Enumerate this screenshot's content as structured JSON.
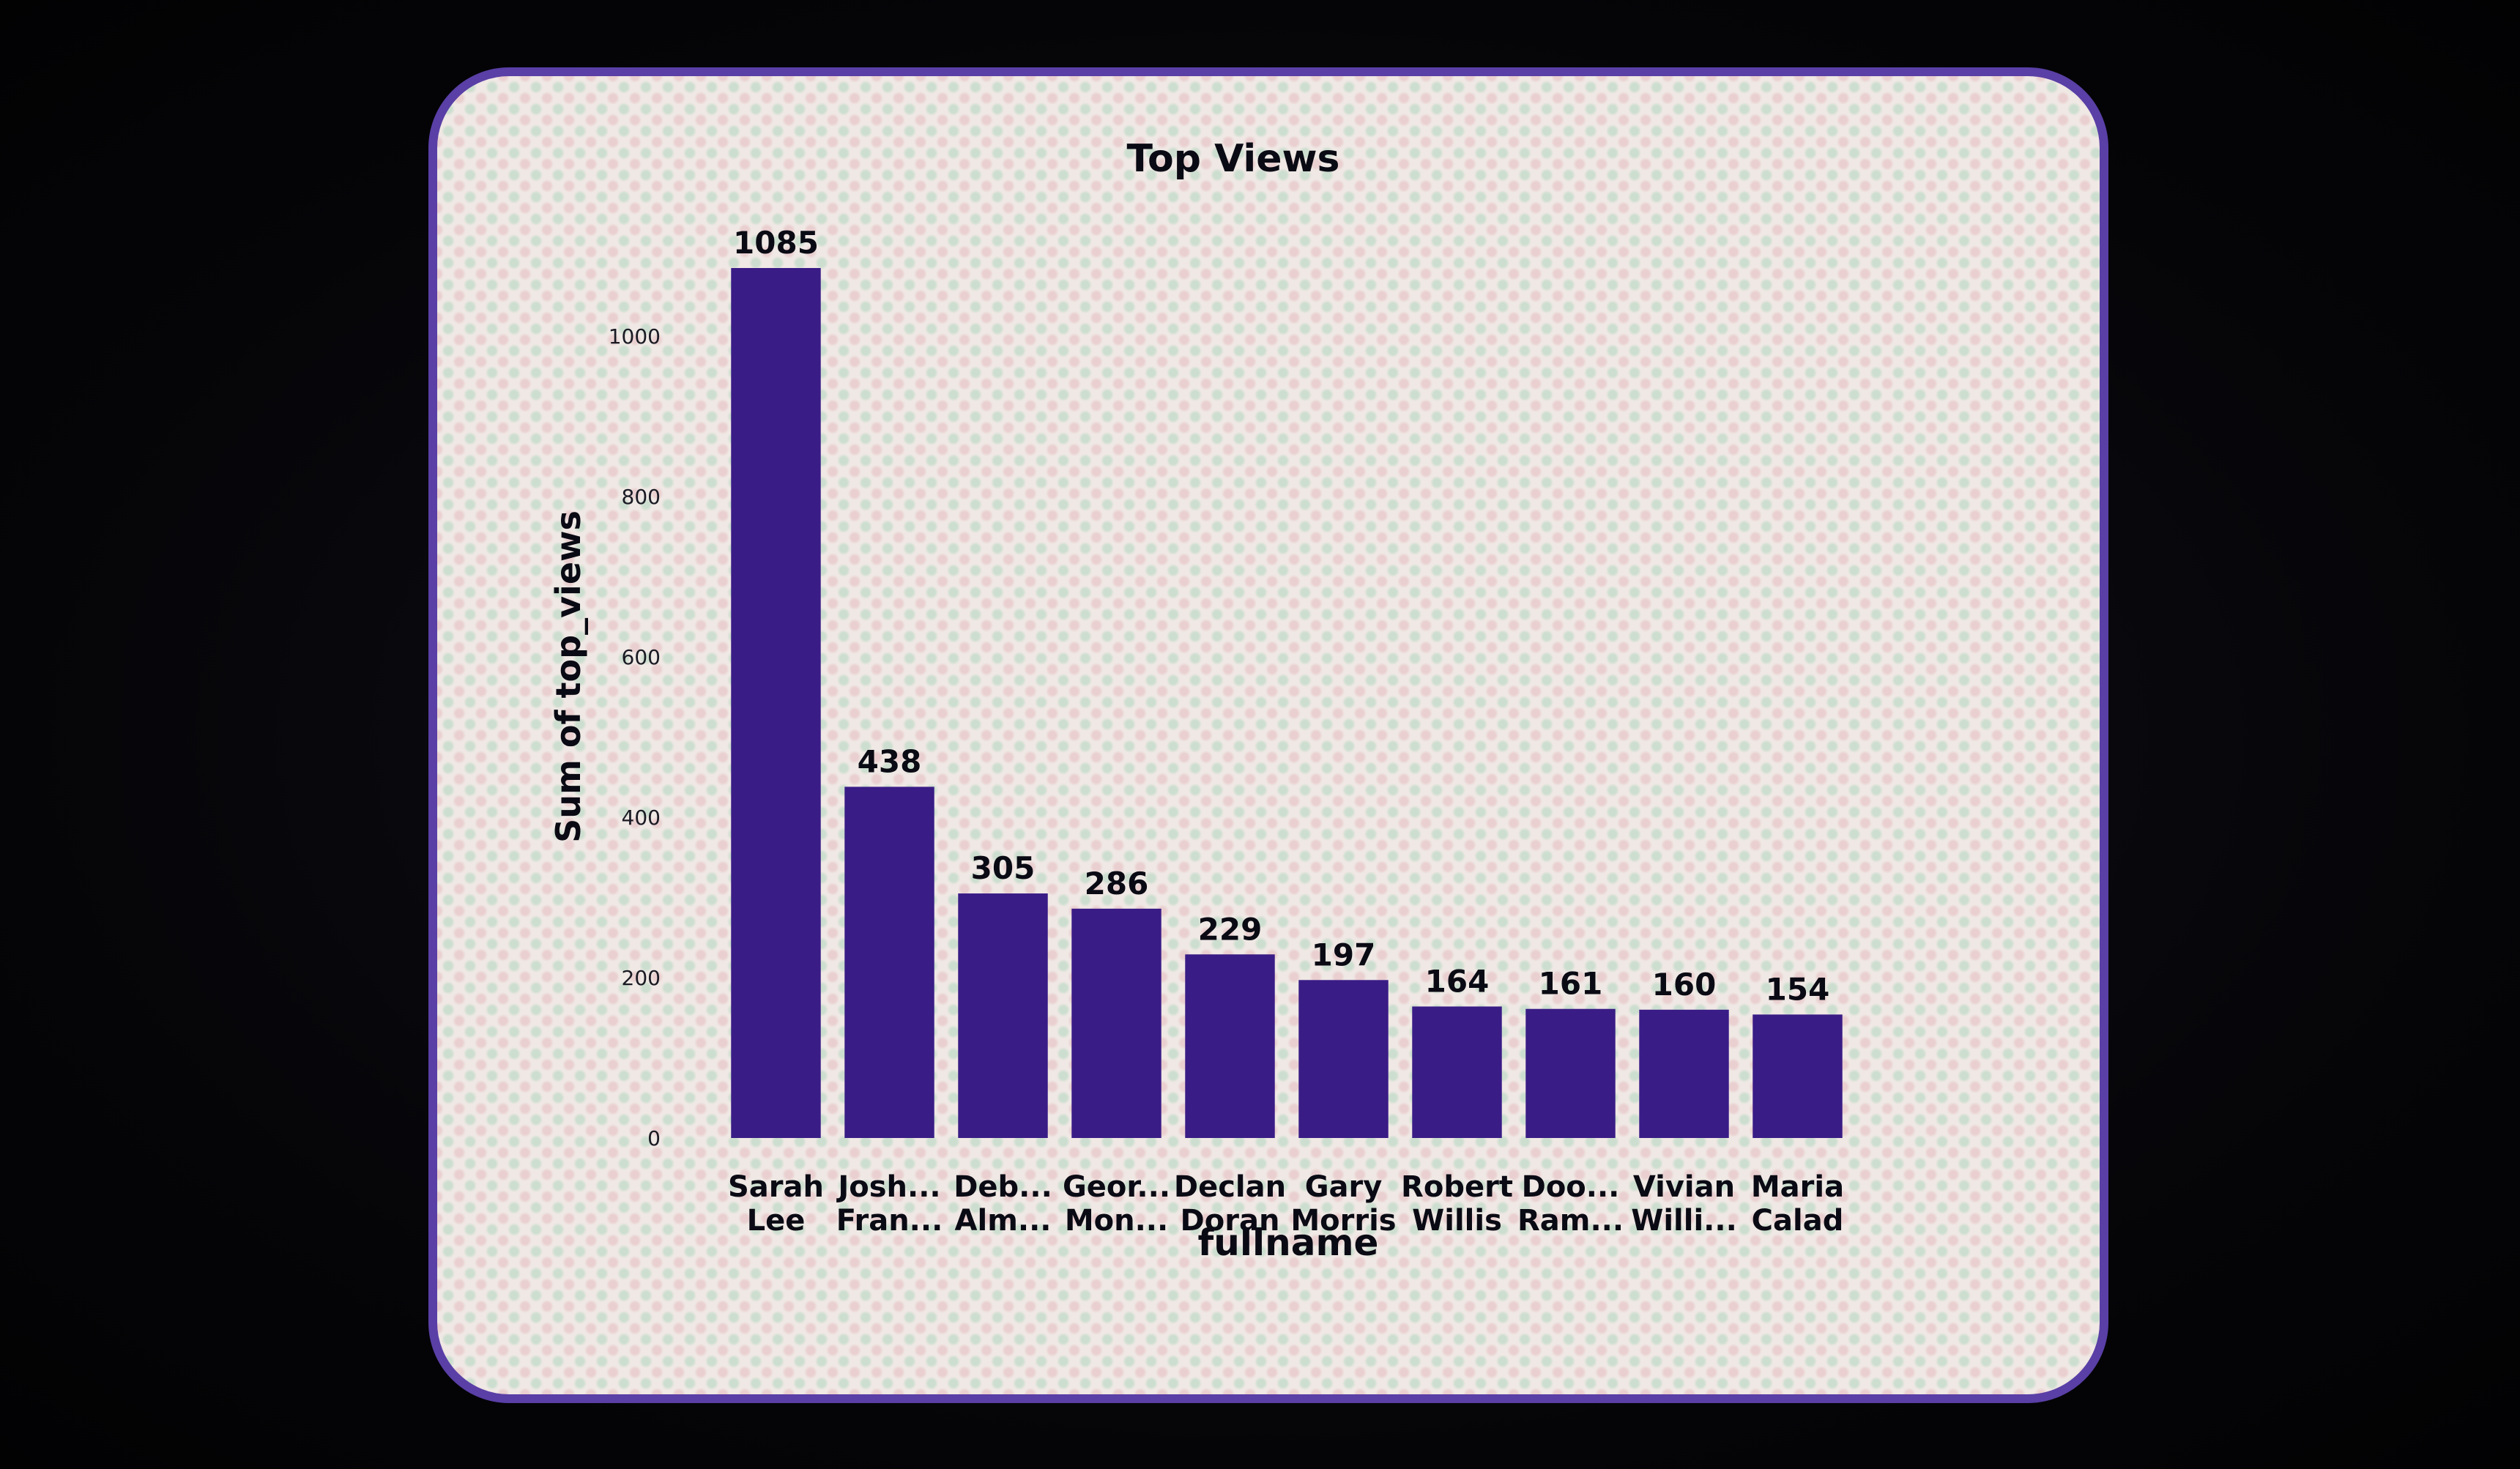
{
  "chart_data": {
    "type": "bar",
    "title": "Top Views",
    "xlabel": "fullname",
    "ylabel": "Sum of top_views",
    "categories": [
      [
        "Sarah",
        "Lee"
      ],
      [
        "Josh...",
        "Fran..."
      ],
      [
        "Deb...",
        "Alm..."
      ],
      [
        "Geor...",
        "Mon..."
      ],
      [
        "Declan",
        "Doran"
      ],
      [
        "Gary",
        "Morris"
      ],
      [
        "Robert",
        "Willis"
      ],
      [
        "Doo...",
        "Ram..."
      ],
      [
        "Vivian",
        "Willi..."
      ],
      [
        "Maria",
        "Calad"
      ]
    ],
    "values": [
      1085,
      438,
      305,
      286,
      229,
      197,
      164,
      161,
      160,
      154
    ],
    "yticks": [
      0,
      200,
      400,
      600,
      800,
      1000
    ],
    "ylim": [
      0,
      1085
    ],
    "grid": false,
    "legend": "none",
    "bar_color": "#3a1c86"
  }
}
